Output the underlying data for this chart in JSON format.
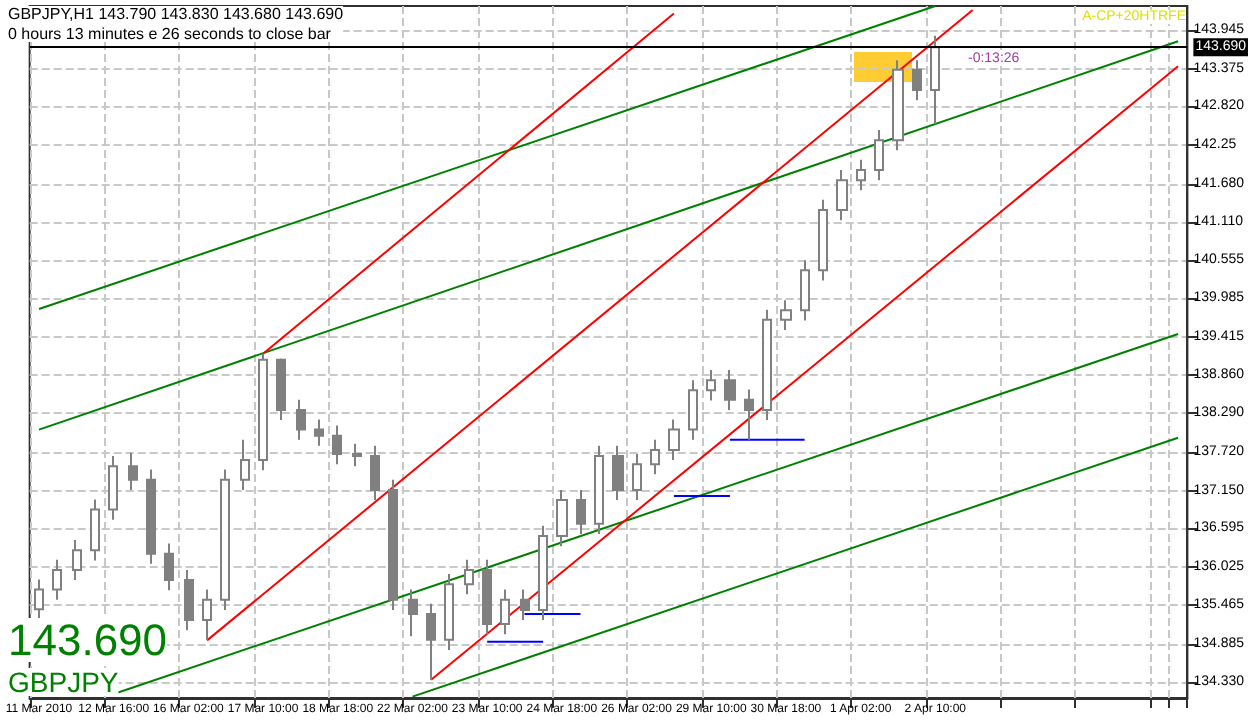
{
  "chart_data": {
    "type": "candlestick",
    "title": "GBPJPY,H1 143.790 143.830 143.680 143.690",
    "subtitle": "0 hours 13 minutes e 26 seconds to close bar",
    "annotations": [
      "143.690",
      "GBPJPY",
      "A-CP+20HTRFE",
      "-0:13:26"
    ],
    "categories": [
      "11 Mar 2010",
      null,
      null,
      null,
      "12 Mar 16:00",
      null,
      null,
      null,
      "16 Mar 02:00",
      null,
      null,
      null,
      "17 Mar 10:00",
      null,
      null,
      null,
      "18 Mar 18:00",
      null,
      null,
      null,
      "22 Mar 02:00",
      null,
      null,
      null,
      "23 Mar 10:00",
      null,
      null,
      null,
      "24 Mar 18:00",
      null,
      null,
      null,
      "26 Mar 02:00",
      null,
      null,
      null,
      "29 Mar 10:00",
      null,
      null,
      null,
      "30 Mar 18:00",
      null,
      null,
      null,
      "1 Apr 02:00",
      null,
      null,
      null,
      "2 Apr 10:00",
      null,
      null,
      null,
      null,
      null,
      null,
      null,
      null,
      null,
      null,
      null,
      null,
      null
    ],
    "series": [
      {
        "color": "#808080",
        "ohlc": [
          [
            135.4,
            135.84,
            135.25,
            135.69
          ],
          [
            135.69,
            136.13,
            135.54,
            135.98
          ],
          [
            135.98,
            136.42,
            135.83,
            136.27
          ],
          [
            136.27,
            137.02,
            136.12,
            136.87
          ],
          [
            136.87,
            137.66,
            136.72,
            137.51
          ],
          [
            137.51,
            137.71,
            137.16,
            137.31
          ],
          [
            137.31,
            137.46,
            136.07,
            136.22
          ],
          [
            136.22,
            136.37,
            135.68,
            135.83
          ],
          [
            135.83,
            135.98,
            135.09,
            135.24
          ],
          [
            135.24,
            135.69,
            134.95,
            135.54
          ],
          [
            135.54,
            137.46,
            135.39,
            137.31
          ],
          [
            137.31,
            137.9,
            137.16,
            137.6
          ],
          [
            137.6,
            139.17,
            137.45,
            139.08
          ],
          [
            139.08,
            139.1,
            138.19,
            138.34
          ],
          [
            138.34,
            138.49,
            137.9,
            138.05
          ],
          [
            138.05,
            138.2,
            137.81,
            137.96
          ],
          [
            137.96,
            138.11,
            137.54,
            137.69
          ],
          [
            137.69,
            137.84,
            137.51,
            137.66
          ],
          [
            137.66,
            137.81,
            137.01,
            137.16
          ],
          [
            137.16,
            137.31,
            135.39,
            135.54
          ],
          [
            135.54,
            135.69,
            135.0,
            135.33
          ],
          [
            135.33,
            135.48,
            134.36,
            134.95
          ],
          [
            134.95,
            135.92,
            134.8,
            135.77
          ],
          [
            135.77,
            136.13,
            135.62,
            135.98
          ],
          [
            135.98,
            136.13,
            135.03,
            135.18
          ],
          [
            135.18,
            135.69,
            135.03,
            135.54
          ],
          [
            135.54,
            135.69,
            135.24,
            135.39
          ],
          [
            135.39,
            136.63,
            135.24,
            136.48
          ],
          [
            136.48,
            137.16,
            136.33,
            137.01
          ],
          [
            137.01,
            137.16,
            136.51,
            136.66
          ],
          [
            136.66,
            137.81,
            136.51,
            137.66
          ],
          [
            137.66,
            137.81,
            137.01,
            137.16
          ],
          [
            137.16,
            137.69,
            137.01,
            137.54
          ],
          [
            137.54,
            137.9,
            137.39,
            137.75
          ],
          [
            137.75,
            138.2,
            137.6,
            138.05
          ],
          [
            138.05,
            138.78,
            137.9,
            138.63
          ],
          [
            138.63,
            138.93,
            138.48,
            138.78
          ],
          [
            138.78,
            138.93,
            138.34,
            138.49
          ],
          [
            138.49,
            138.64,
            137.9,
            138.34
          ],
          [
            138.34,
            139.82,
            138.19,
            139.67
          ],
          [
            139.67,
            139.96,
            139.52,
            139.81
          ],
          [
            139.81,
            140.55,
            139.66,
            140.4
          ],
          [
            140.4,
            141.44,
            140.25,
            141.29
          ],
          [
            141.29,
            141.88,
            141.14,
            141.73
          ],
          [
            141.73,
            142.03,
            141.58,
            141.88
          ],
          [
            141.88,
            142.47,
            141.73,
            142.32
          ],
          [
            142.32,
            143.5,
            142.17,
            143.36
          ],
          [
            143.36,
            143.5,
            142.91,
            143.06
          ],
          [
            143.06,
            143.86,
            142.56,
            143.69
          ],
          null,
          null,
          null,
          null,
          null,
          null,
          null,
          null,
          null,
          null,
          null,
          null,
          null
        ]
      },
      {
        "type": "line",
        "color": "#008000",
        "values": [
          139.83,
          null,
          null,
          null,
          null,
          null,
          null,
          null,
          null,
          null,
          null,
          null,
          null,
          null,
          null,
          null,
          null,
          null,
          null,
          null,
          null,
          null,
          null,
          null,
          null,
          null,
          null,
          null,
          null,
          null,
          null,
          null,
          null,
          null,
          null,
          null,
          null,
          null,
          null,
          null,
          null,
          null,
          null,
          null,
          null,
          null,
          null,
          null,
          144.3,
          null,
          null,
          null,
          null,
          null,
          null,
          null,
          null,
          null,
          null,
          null,
          null,
          null
        ]
      },
      {
        "type": "line",
        "color": "#008000",
        "values": [
          138.05,
          null,
          null,
          null,
          null,
          null,
          null,
          null,
          null,
          null,
          null,
          null,
          null,
          null,
          null,
          null,
          null,
          null,
          null,
          null,
          null,
          null,
          null,
          null,
          null,
          null,
          null,
          null,
          null,
          null,
          null,
          null,
          null,
          null,
          null,
          null,
          null,
          null,
          null,
          null,
          null,
          null,
          null,
          null,
          null,
          null,
          null,
          null,
          null,
          null,
          null,
          null,
          null,
          null,
          null,
          null,
          null,
          null,
          null,
          null,
          null,
          143.78
        ]
      },
      {
        "type": "line",
        "color": "#008000",
        "values": [
          null,
          null,
          null,
          null,
          134.15,
          null,
          null,
          null,
          null,
          null,
          null,
          null,
          null,
          null,
          null,
          null,
          null,
          null,
          null,
          null,
          null,
          null,
          null,
          null,
          null,
          null,
          null,
          null,
          null,
          null,
          null,
          null,
          null,
          null,
          null,
          null,
          null,
          null,
          null,
          null,
          null,
          null,
          null,
          null,
          null,
          null,
          null,
          null,
          null,
          null,
          null,
          null,
          null,
          null,
          null,
          null,
          null,
          null,
          null,
          null,
          null,
          139.46
        ]
      },
      {
        "type": "line",
        "color": "#008000",
        "values": [
          null,
          null,
          null,
          null,
          null,
          null,
          null,
          null,
          null,
          null,
          null,
          null,
          null,
          null,
          null,
          null,
          null,
          null,
          null,
          null,
          134.11,
          null,
          null,
          null,
          null,
          null,
          null,
          null,
          null,
          null,
          null,
          null,
          null,
          null,
          null,
          null,
          null,
          null,
          null,
          null,
          null,
          null,
          null,
          null,
          null,
          null,
          null,
          null,
          null,
          null,
          null,
          null,
          null,
          null,
          null,
          null,
          null,
          null,
          null,
          null,
          null,
          137.93
        ]
      },
      {
        "type": "line",
        "color": "#ff0000",
        "values": [
          null,
          null,
          null,
          null,
          null,
          null,
          null,
          null,
          null,
          null,
          null,
          null,
          139.17,
          null,
          null,
          null,
          null,
          null,
          null,
          null,
          null,
          null,
          null,
          null,
          null,
          null,
          null,
          null,
          null,
          null,
          null,
          null,
          null,
          null,
          144.19,
          null,
          null,
          null,
          null,
          null,
          null,
          null,
          null,
          null,
          null,
          null,
          null,
          null,
          null,
          null,
          null,
          null,
          null,
          null,
          null,
          null,
          null,
          null,
          null,
          null,
          null,
          null
        ]
      },
      {
        "type": "line",
        "color": "#ff0000",
        "values": [
          null,
          null,
          null,
          null,
          null,
          null,
          null,
          null,
          null,
          134.94,
          null,
          null,
          null,
          null,
          null,
          null,
          null,
          null,
          null,
          null,
          null,
          null,
          null,
          null,
          null,
          null,
          null,
          null,
          null,
          null,
          null,
          null,
          null,
          null,
          null,
          null,
          null,
          null,
          null,
          null,
          null,
          null,
          null,
          null,
          null,
          null,
          null,
          null,
          null,
          null,
          144.24,
          null,
          null,
          null,
          null,
          null,
          null,
          null,
          null,
          null,
          null,
          null
        ]
      },
      {
        "type": "line",
        "color": "#ff0000",
        "values": [
          null,
          null,
          null,
          null,
          null,
          null,
          null,
          null,
          null,
          null,
          null,
          null,
          null,
          null,
          null,
          null,
          null,
          null,
          null,
          null,
          null,
          134.36,
          null,
          null,
          null,
          null,
          null,
          null,
          null,
          null,
          null,
          null,
          null,
          null,
          null,
          null,
          null,
          null,
          null,
          null,
          null,
          null,
          null,
          null,
          null,
          null,
          null,
          null,
          null,
          null,
          null,
          null,
          null,
          null,
          null,
          null,
          null,
          null,
          null,
          null,
          null,
          143.41
        ]
      },
      {
        "type": "line",
        "color": "#0000ff",
        "values": [
          null,
          null,
          null,
          null,
          null,
          null,
          null,
          null,
          null,
          null,
          null,
          null,
          null,
          null,
          null,
          null,
          null,
          null,
          null,
          null,
          null,
          null,
          null,
          null,
          134.92,
          null,
          null,
          134.92,
          null,
          null,
          null,
          null,
          null,
          null,
          null,
          null,
          null,
          null,
          null,
          null,
          null,
          null,
          null,
          null,
          null,
          null,
          null,
          null,
          null,
          null,
          null,
          null,
          null,
          null,
          null,
          null,
          null,
          null,
          null,
          null,
          null,
          null
        ]
      },
      {
        "type": "line",
        "color": "#0000ff",
        "values": [
          null,
          null,
          null,
          null,
          null,
          null,
          null,
          null,
          null,
          null,
          null,
          null,
          null,
          null,
          null,
          null,
          null,
          null,
          null,
          null,
          null,
          null,
          null,
          null,
          null,
          null,
          135.33,
          null,
          null,
          135.33,
          null,
          null,
          null,
          null,
          null,
          null,
          null,
          null,
          null,
          null,
          null,
          null,
          null,
          null,
          null,
          null,
          null,
          null,
          null,
          null,
          null,
          null,
          null,
          null,
          null,
          null,
          null,
          null,
          null,
          null,
          null,
          null
        ]
      },
      {
        "type": "line",
        "color": "#0000ff",
        "values": [
          null,
          null,
          null,
          null,
          null,
          null,
          null,
          null,
          null,
          null,
          null,
          null,
          null,
          null,
          null,
          null,
          null,
          null,
          null,
          null,
          null,
          null,
          null,
          null,
          null,
          null,
          null,
          null,
          null,
          null,
          null,
          null,
          null,
          null,
          137.07,
          null,
          null,
          137.07,
          null,
          null,
          null,
          null,
          null,
          null,
          null,
          null,
          null,
          null,
          null,
          null,
          null,
          null,
          null,
          null,
          null,
          null,
          null,
          null,
          null,
          null,
          null,
          null
        ]
      },
      {
        "type": "line",
        "color": "#0000ff",
        "values": [
          null,
          null,
          null,
          null,
          null,
          null,
          null,
          null,
          null,
          null,
          null,
          null,
          null,
          null,
          null,
          null,
          null,
          null,
          null,
          null,
          null,
          null,
          null,
          null,
          null,
          null,
          null,
          null,
          null,
          null,
          null,
          null,
          null,
          null,
          null,
          null,
          null,
          137.9,
          null,
          null,
          null,
          137.9,
          null,
          null,
          null,
          null,
          null,
          null,
          null,
          null,
          null,
          null,
          null,
          null,
          null,
          null,
          null,
          null,
          null,
          null,
          null,
          null
        ]
      }
    ],
    "ylim": [
      134.09,
      144.3
    ],
    "yticks": [
      143.945,
      143.375,
      {
        "value": 142.82,
        "label": "142.820"
      },
      142.25,
      {
        "value": 141.68,
        "label": "141.680"
      },
      {
        "value": 141.11,
        "label": "141.110"
      },
      140.555,
      139.985,
      139.415,
      {
        "value": 138.86,
        "label": "138.860"
      },
      {
        "value": 138.29,
        "label": "138.290"
      },
      {
        "value": 137.72,
        "label": "137.720"
      },
      {
        "value": 137.15,
        "label": "137.150"
      },
      136.595,
      136.025,
      135.465,
      134.885,
      {
        "value": 134.33,
        "label": "134.330"
      }
    ],
    "ref_lines": [
      {
        "axis": "y",
        "value": 143.69,
        "label": "143.690",
        "color": "#000000"
      }
    ],
    "grid": true
  }
}
